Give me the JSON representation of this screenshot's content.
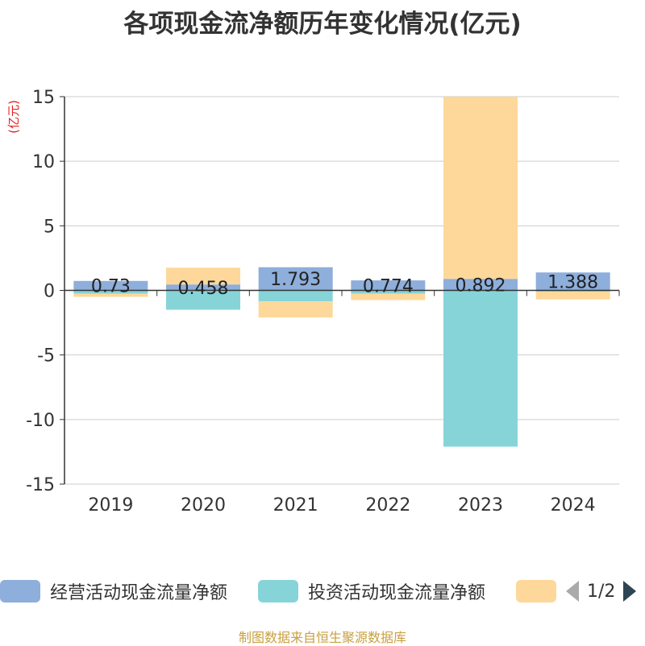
{
  "title": "各项现金流净额历年变化情况(亿元)",
  "source": "制图数据来自恒生聚源数据库",
  "pager": {
    "text": "1/2"
  },
  "chart_data": {
    "type": "bar",
    "stacked": true,
    "unit_label": "(亿元)",
    "categories": [
      "2019",
      "2020",
      "2021",
      "2022",
      "2023",
      "2024"
    ],
    "ylim": [
      -15,
      15
    ],
    "yticks": [
      15,
      10,
      5,
      0,
      -5,
      -10,
      -15
    ],
    "grid": true,
    "legend_position": "bottom",
    "series": [
      {
        "name": "经营活动现金流量净额",
        "color": "#8eaedb",
        "values": [
          0.73,
          0.458,
          1.793,
          0.774,
          0.892,
          1.388
        ],
        "labels": [
          "0.73",
          "0.458",
          "1.793",
          "0.774",
          "0.892",
          "1.388"
        ]
      },
      {
        "name": "投资活动现金流量净额",
        "color": "#86d4d8",
        "values": [
          -0.25,
          -1.5,
          -0.85,
          -0.25,
          -12.1,
          -0.1
        ]
      },
      {
        "name": "",
        "color": "#fdd89a",
        "values": [
          -0.25,
          1.3,
          -1.25,
          -0.5,
          14.1,
          -0.6
        ]
      }
    ]
  }
}
